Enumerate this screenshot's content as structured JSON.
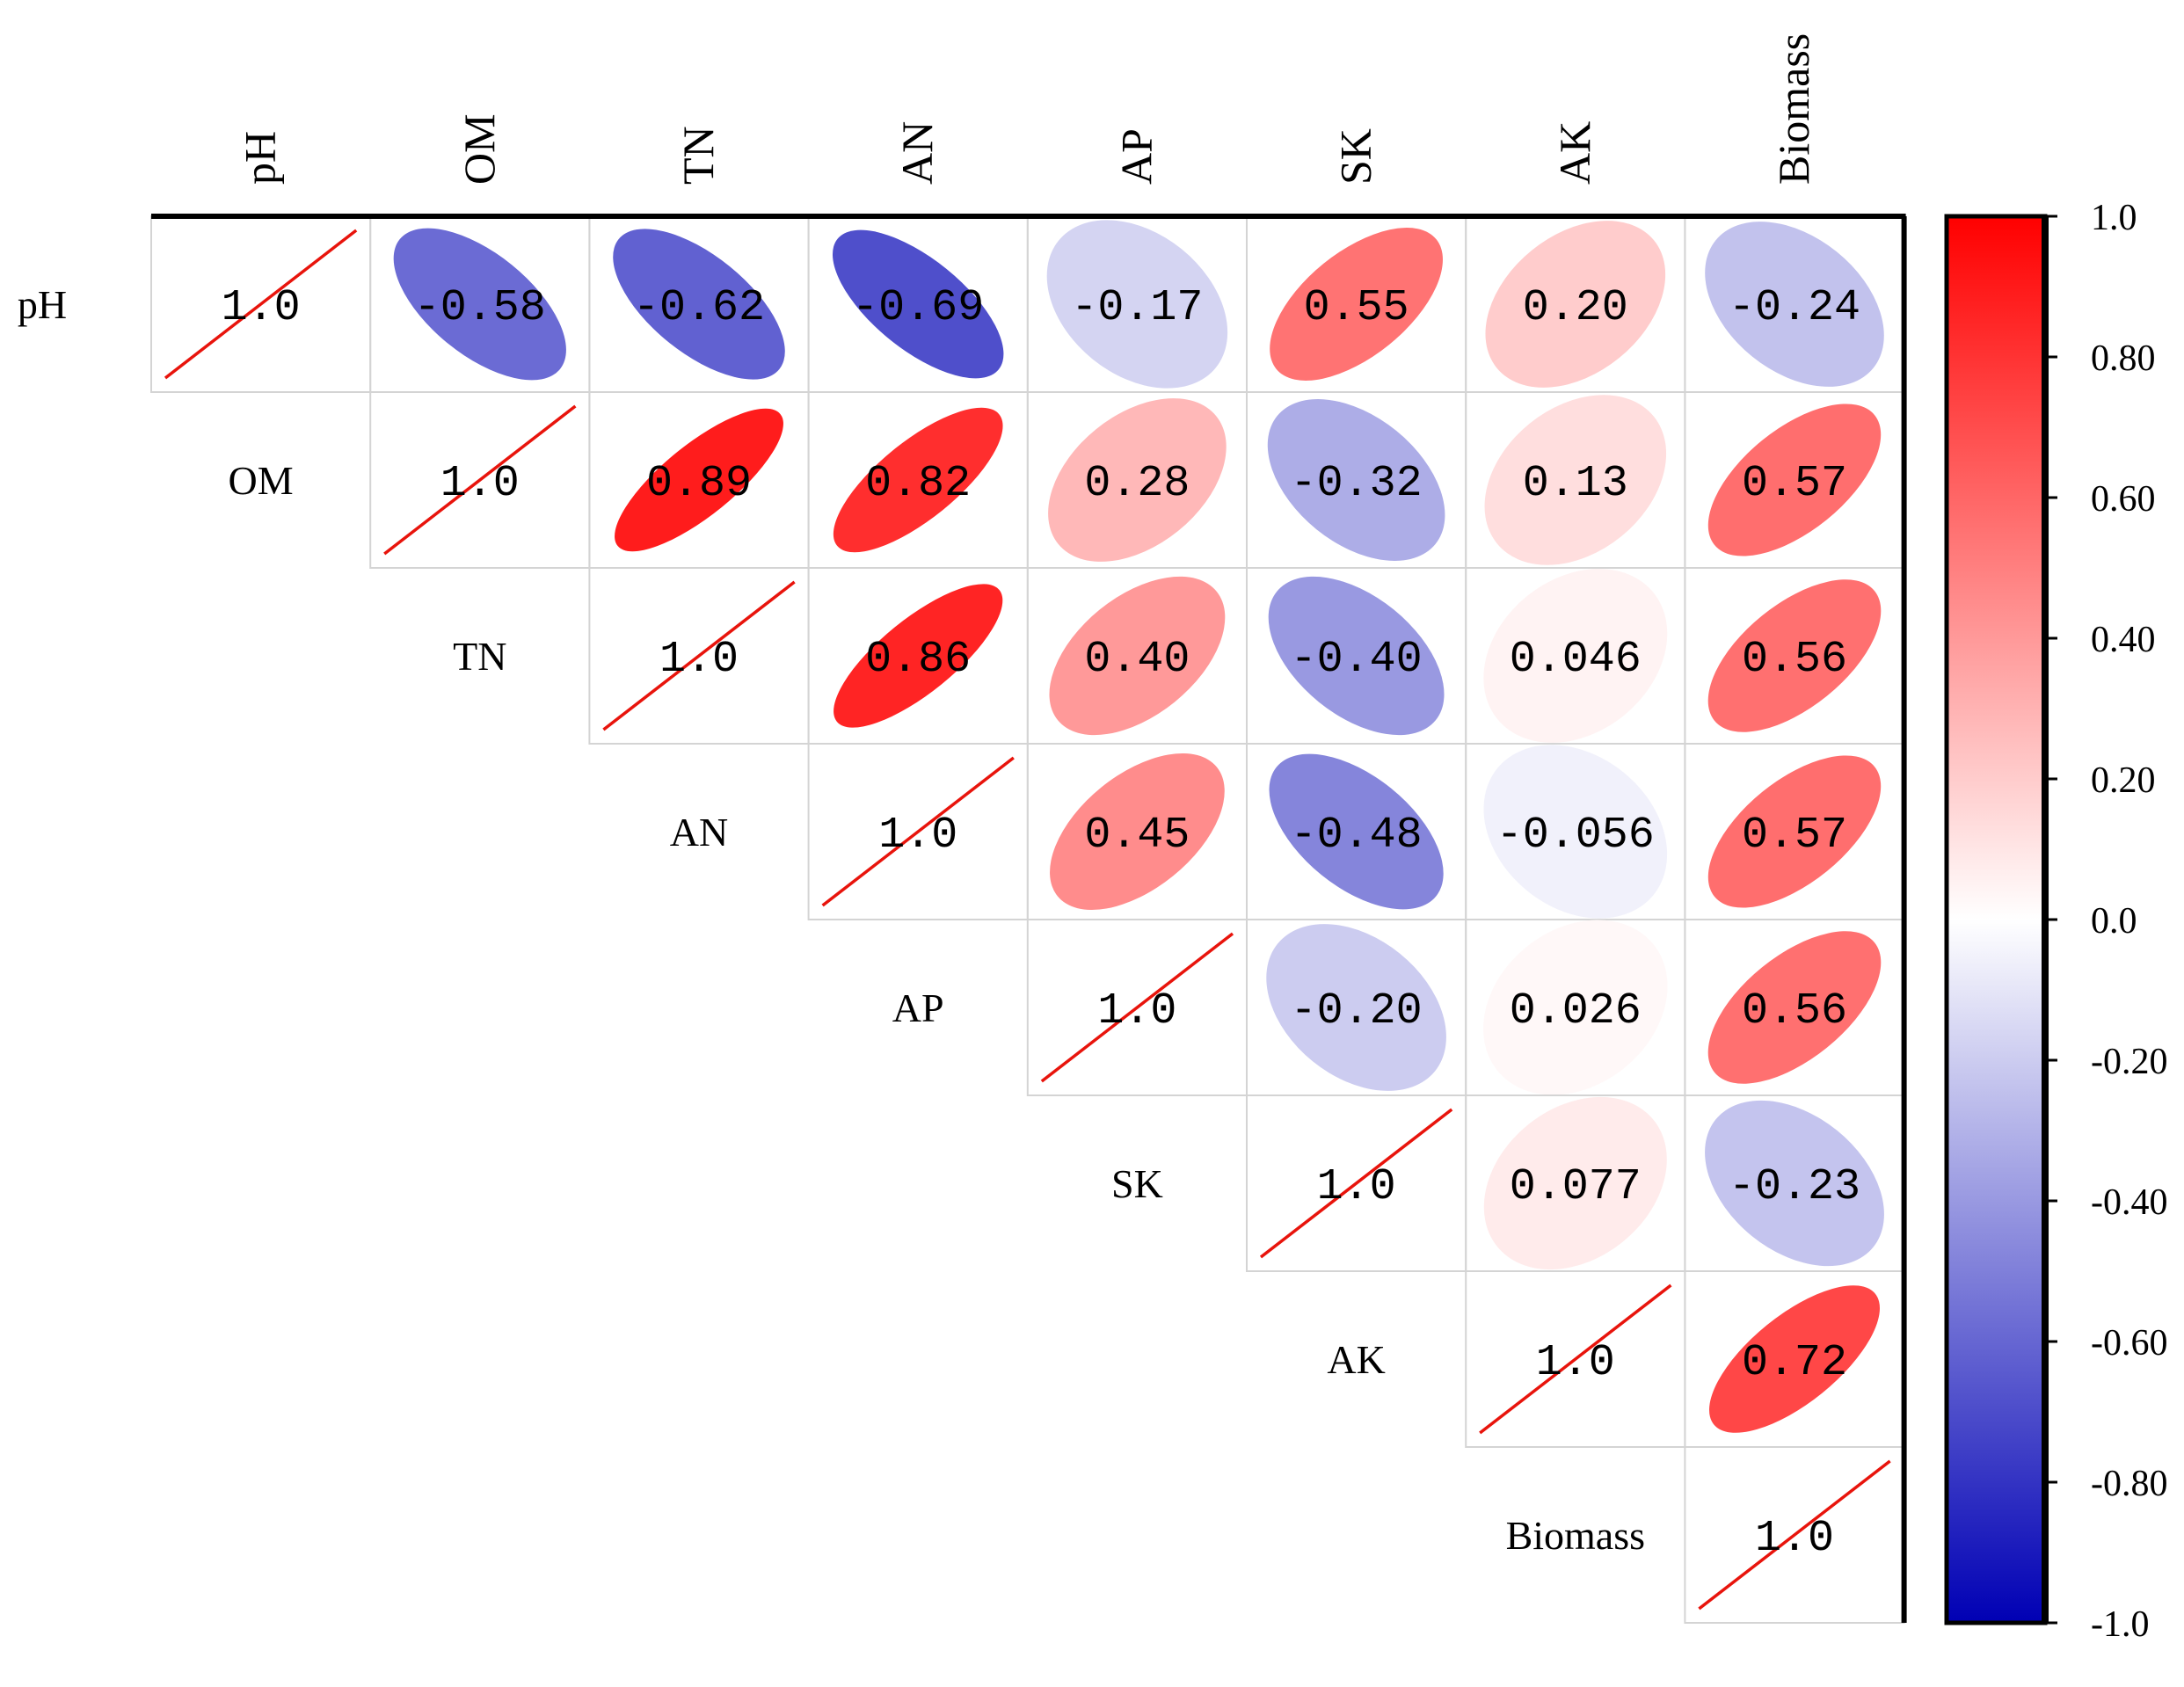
{
  "chart_data": {
    "type": "heatmap",
    "subtype": "correlation-ellipse-upper",
    "title": "",
    "variables": [
      "pH",
      "OM",
      "TN",
      "AN",
      "AP",
      "SK",
      "AK",
      "Biomass"
    ],
    "values_text": [
      [
        "1.0",
        "-0.58",
        "-0.62",
        "-0.69",
        "-0.17",
        "0.55",
        "0.20",
        "-0.24"
      ],
      [
        null,
        "1.0",
        "0.89",
        "0.82",
        "0.28",
        "-0.32",
        "0.13",
        "0.57"
      ],
      [
        null,
        null,
        "1.0",
        "0.86",
        "0.40",
        "-0.40",
        "0.046",
        "0.56"
      ],
      [
        null,
        null,
        null,
        "1.0",
        "0.45",
        "-0.48",
        "-0.056",
        "0.57"
      ],
      [
        null,
        null,
        null,
        null,
        "1.0",
        "-0.20",
        "0.026",
        "0.56"
      ],
      [
        null,
        null,
        null,
        null,
        null,
        "1.0",
        "0.077",
        "-0.23"
      ],
      [
        null,
        null,
        null,
        null,
        null,
        null,
        "1.0",
        "0.72"
      ],
      [
        null,
        null,
        null,
        null,
        null,
        null,
        null,
        "1.0"
      ]
    ],
    "colorbar": {
      "range": [
        -1.0,
        1.0
      ],
      "ticks": [
        "1.0",
        "0.80",
        "0.60",
        "0.40",
        "0.20",
        "0.0",
        "-0.20",
        "-0.40",
        "-0.60",
        "-0.80",
        "-1.0"
      ],
      "colors": {
        "negative": "#0000b4",
        "neutral": "#ffffff",
        "positive": "#ff0000"
      }
    },
    "colors": {
      "diagonal_line": "#e8140c",
      "cell_border": "#d4d4d4",
      "frame": "#000000"
    }
  }
}
